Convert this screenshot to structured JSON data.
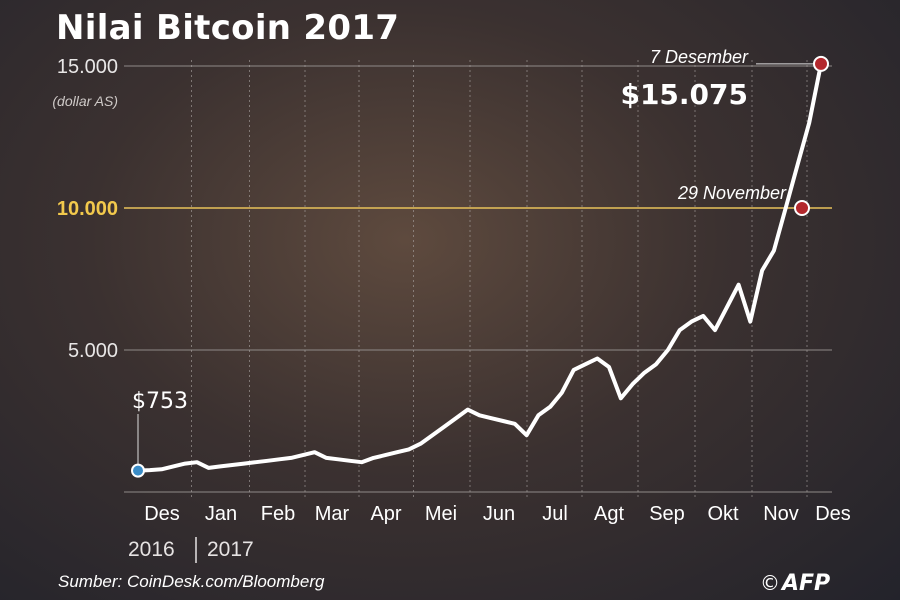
{
  "chart_data": {
    "type": "line",
    "title": "Nilai Bitcoin 2017",
    "y_unit": "(dollar AS)",
    "ylim": [
      0,
      15000
    ],
    "y_ticks": [
      "5.000",
      "10.000",
      "15.000"
    ],
    "y_tick_values": [
      5000,
      10000,
      15000
    ],
    "highlight_tick": "10.000",
    "months": [
      "Des",
      "Jan",
      "Feb",
      "Mar",
      "Apr",
      "Mei",
      "Jun",
      "Jul",
      "Agt",
      "Sep",
      "Okt",
      "Nov",
      "Des"
    ],
    "years": [
      "2016",
      "2017"
    ],
    "series": [
      {
        "values": [
          753,
          770,
          800,
          900,
          1000,
          1050,
          850,
          900,
          950,
          1000,
          1050,
          1100,
          1150,
          1200,
          1300,
          1400,
          1200,
          1150,
          1100,
          1050,
          1200,
          1300,
          1400,
          1500,
          1700,
          2000,
          2300,
          2600,
          2900,
          2700,
          2600,
          2500,
          2400,
          2000,
          2700,
          3000,
          3500,
          4300,
          4500,
          4700,
          4400,
          3300,
          3800,
          4200,
          4500,
          5000,
          5700,
          6000,
          6200,
          5700,
          6500,
          7300,
          6000,
          7800,
          8500,
          10000,
          11500,
          13000,
          15075
        ]
      }
    ],
    "annotations": {
      "start": {
        "value_label": "$753",
        "value": 753
      },
      "nov29": {
        "date": "29 November",
        "value": 10000
      },
      "dec7": {
        "date": "7 Desember",
        "value_label": "$15.075",
        "value": 15075
      }
    }
  },
  "source": "Sumber: CoinDesk.com/Bloomberg",
  "credit": "©",
  "logo": "AFP",
  "colors": {
    "line": "#ffffff",
    "highlight_line": "#e8c25a",
    "start_dot": "#3a8cc7",
    "end_dot": "#b3282d",
    "grid": "#8f8a88"
  }
}
